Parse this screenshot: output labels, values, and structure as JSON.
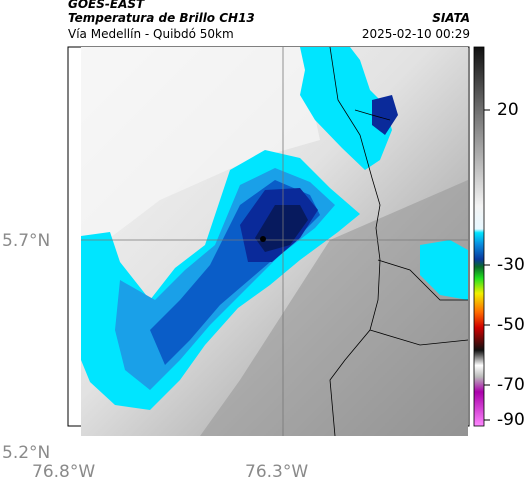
{
  "header": {
    "satellite": "GOES-EAST",
    "product": "Temperatura de Brillo CH13",
    "route": "Vía Medellín - Quibdó 50km",
    "organization": "SIATA",
    "datetime": "2025-02-10 00:29"
  },
  "axes": {
    "y_ticks": [
      "5.7°N",
      "5.2°N"
    ],
    "x_ticks": [
      "76.8°W",
      "76.3°W"
    ]
  },
  "colorbar": {
    "tick_labels": [
      "20",
      "-30",
      "-50",
      "-70",
      "-90"
    ]
  },
  "colors": {
    "cloud_cyan": "#00e5ff",
    "cloud_light_blue": "#1aa0e8",
    "cloud_mid_blue": "#0a5dc8",
    "cloud_deep_blue": "#0a2a9a",
    "cloud_navy": "#071a5e",
    "background_light": "#f0f0f0",
    "background_gray": "#8c8c8c",
    "border_line": "#000000"
  }
}
